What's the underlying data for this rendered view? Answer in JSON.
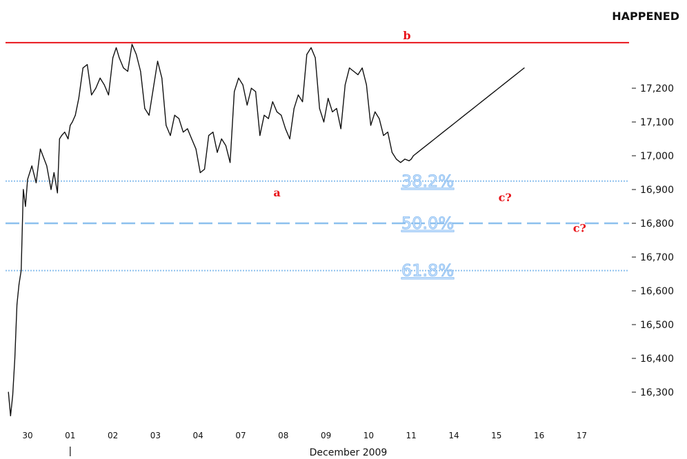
{
  "chart_data": {
    "type": "line",
    "header_note": "HAPPENED",
    "xlabel": "December 2009",
    "ylim": [
      16230,
      17345
    ],
    "y_ticks": [
      17200,
      17100,
      17000,
      16900,
      16800,
      16700,
      16600,
      16500,
      16400,
      16300
    ],
    "y_tick_labels": [
      "17,200",
      "17,100",
      "17,000",
      "16,900",
      "16,800",
      "16,700",
      "16,600",
      "16,500",
      "16,400",
      "16,300"
    ],
    "categories": [
      "30",
      "01",
      "02",
      "03",
      "04",
      "07",
      "08",
      "09",
      "10",
      "11",
      "14",
      "15",
      "16",
      "17"
    ],
    "series": [
      {
        "x": [
          -0.45,
          -0.4,
          -0.35,
          -0.3,
          -0.25,
          -0.2,
          -0.15,
          -0.1,
          -0.05,
          0.0,
          0.05,
          0.1,
          0.2,
          0.3,
          0.45,
          0.55,
          0.62,
          0.7,
          0.75,
          0.8,
          0.87,
          0.95,
          1.0,
          1.05,
          1.12,
          1.2,
          1.3,
          1.4,
          1.5,
          1.6,
          1.7,
          1.8,
          1.9,
          2.0,
          2.08,
          2.15,
          2.25,
          2.35,
          2.45,
          2.55,
          2.65,
          2.75,
          2.85,
          2.95,
          3.05,
          3.15,
          3.25,
          3.35,
          3.45,
          3.55,
          3.65,
          3.75,
          3.85,
          3.95,
          4.05,
          4.15,
          4.25,
          4.35,
          4.45,
          4.55,
          4.65,
          4.75,
          4.85,
          4.95,
          5.05,
          5.15,
          5.25,
          5.35,
          5.45,
          5.55,
          5.65,
          5.75,
          5.85,
          5.95,
          6.05,
          6.15,
          6.25,
          6.35,
          6.45,
          6.55,
          6.65,
          6.75,
          6.85,
          6.95,
          7.05,
          7.15,
          7.25,
          7.35,
          7.45,
          7.55,
          7.65,
          7.75,
          7.85,
          7.95,
          8.05,
          8.15,
          8.25,
          8.35,
          8.45,
          8.55,
          8.65,
          8.75,
          8.85,
          8.95,
          9.0,
          9.05,
          9.15,
          9.25,
          9.35,
          9.45,
          9.55,
          9.65,
          9.75,
          9.85,
          9.95,
          10.05,
          10.15,
          10.25,
          10.35,
          10.45,
          10.55,
          10.65,
          10.75,
          10.85,
          10.95,
          11.05,
          11.15,
          11.25,
          11.35,
          11.45,
          11.55,
          11.65
        ],
        "values": [
          16300,
          16230,
          16290,
          16400,
          16560,
          16620,
          16660,
          16900,
          16850,
          16930,
          16950,
          16970,
          16920,
          17020,
          16970,
          16900,
          16950,
          16890,
          17050,
          17060,
          17070,
          17050,
          17090,
          17100,
          17120,
          17170,
          17260,
          17270,
          17180,
          17200,
          17230,
          17210,
          17180,
          17290,
          17320,
          17290,
          17260,
          17250,
          17330,
          17300,
          17250,
          17140,
          17120,
          17200,
          17280,
          17230,
          17090,
          17060,
          17120,
          17110,
          17070,
          17080,
          17050,
          17020,
          16950,
          16960,
          17060,
          17070,
          17010,
          17050,
          17030,
          16980,
          17190,
          17230,
          17210,
          17150,
          17200,
          17190,
          17060,
          17120,
          17110,
          17160,
          17130,
          17120,
          17080,
          17050,
          17140,
          17180,
          17160,
          17300,
          17320,
          17290,
          17140,
          17100,
          17170,
          17130,
          17140,
          17080,
          17210,
          17260,
          17250,
          17240,
          17260,
          17210,
          17090,
          17130,
          17110,
          17060,
          17070,
          17010,
          16990,
          16980,
          16990,
          16985,
          16990,
          17000,
          17010,
          17020,
          17030,
          17040,
          17050,
          17060,
          17070,
          17080,
          17090,
          17100,
          17110,
          17120,
          17130,
          17140,
          17150,
          17160,
          17170,
          17180,
          17190,
          17200,
          17210,
          17220,
          17230,
          17240,
          17250,
          17260
        ]
      }
    ],
    "level_lines": [
      {
        "value": 17335,
        "style": "solid",
        "color": "#e8141a"
      },
      {
        "value": 16925,
        "style": "dotted",
        "color": "#8cc0ee",
        "label": "38.2%"
      },
      {
        "value": 16800,
        "style": "dashed",
        "color": "#8cc0ee",
        "label": "50.0%"
      },
      {
        "value": 16660,
        "style": "dotted",
        "color": "#8cc0ee",
        "label": "61.8%"
      }
    ],
    "wave_labels": [
      {
        "text": "b",
        "x": 8.9,
        "value": 17345
      },
      {
        "text": "a",
        "x": 5.85,
        "value": 16880
      },
      {
        "text": "c?",
        "x": 11.2,
        "value": 16865
      },
      {
        "text": "c?",
        "x": 12.95,
        "value": 16775
      }
    ],
    "grid": false,
    "legend": "none"
  }
}
